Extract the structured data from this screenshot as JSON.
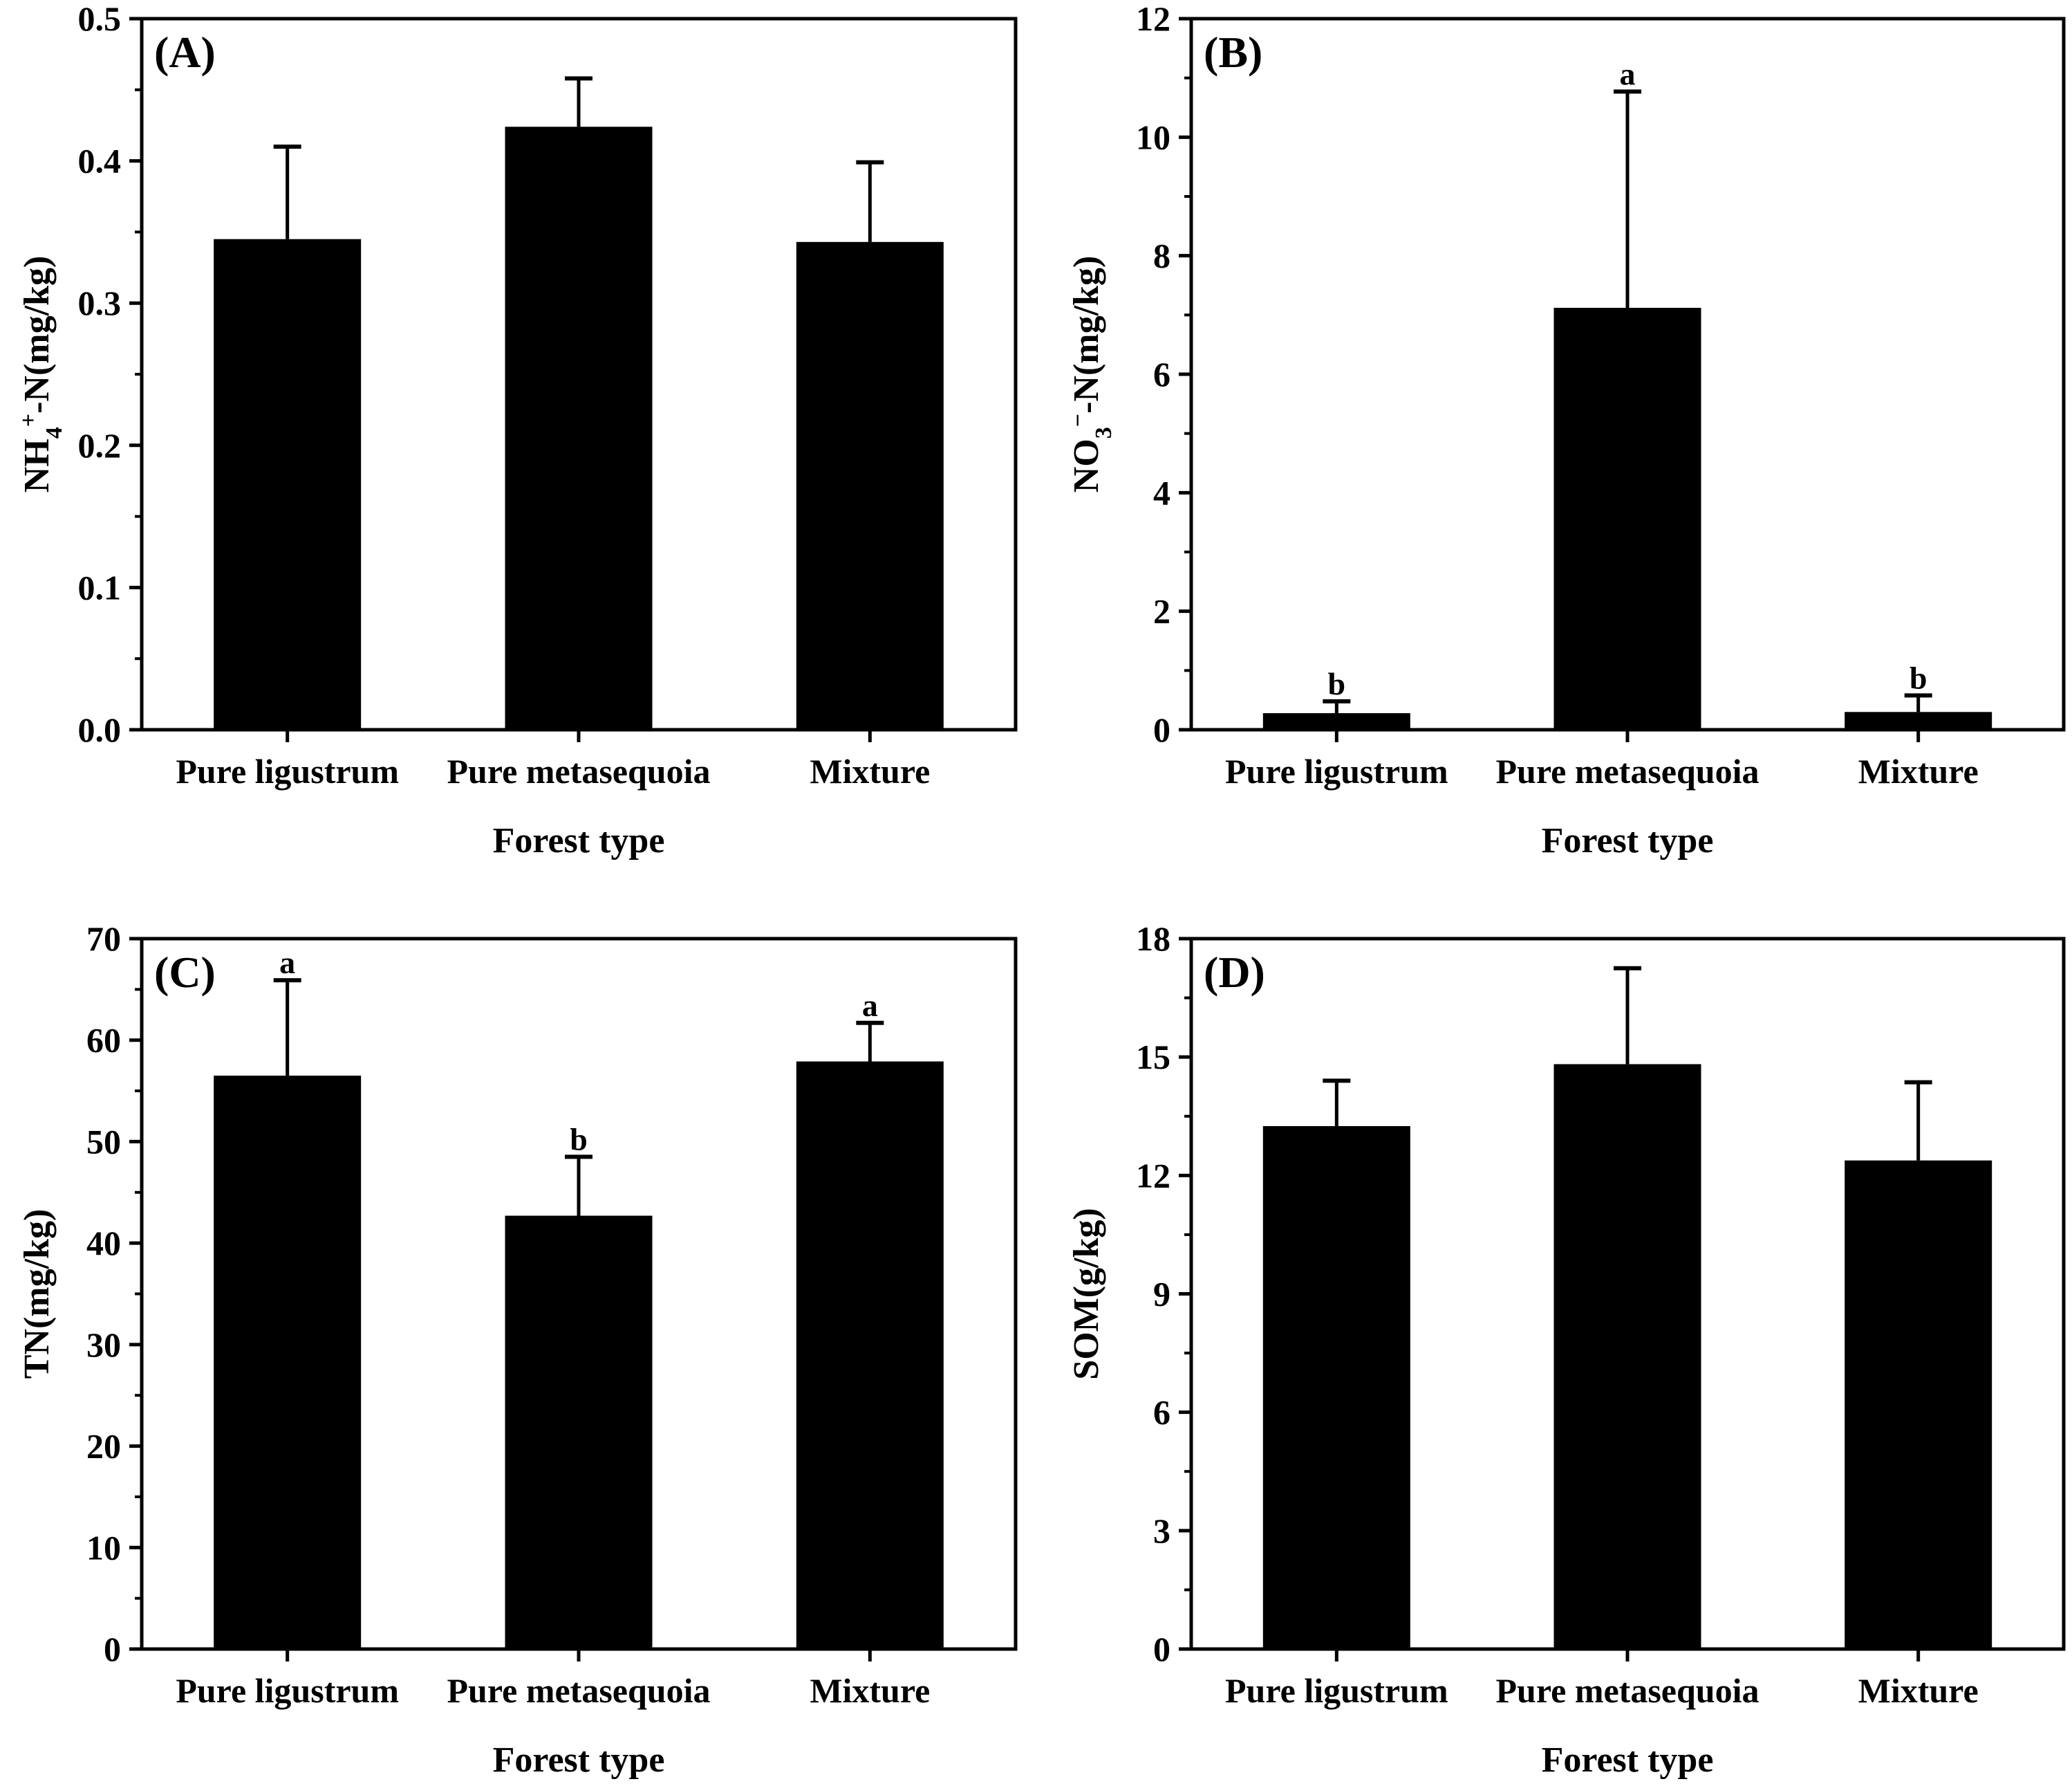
{
  "figure": {
    "colors": {
      "bar": "#000000",
      "axis": "#000000",
      "background": "#ffffff"
    }
  },
  "chart_data": [
    {
      "panel": "(A)",
      "type": "bar",
      "ylabel": "NH4+-N(mg/kg)",
      "ylabel_parts": {
        "main": "NH",
        "sub": "4",
        "sup": "+",
        "tail": "-N(mg/kg)"
      },
      "xlabel": "Forest type",
      "categories": [
        "Pure ligustrum",
        "Pure metasequoia",
        "Mixture"
      ],
      "values": [
        0.345,
        0.424,
        0.343
      ],
      "errors": [
        0.065,
        0.034,
        0.056
      ],
      "significance": [
        "",
        "",
        ""
      ],
      "ylim": [
        0,
        0.5
      ],
      "yticks": [
        0,
        0.1,
        0.2,
        0.3,
        0.4,
        0.5
      ],
      "yticklabels": [
        "0.0",
        "0.1",
        "0.2",
        "0.3",
        "0.4",
        "0.5"
      ]
    },
    {
      "panel": "(B)",
      "type": "bar",
      "ylabel": "NO3−-N(mg/kg)",
      "ylabel_parts": {
        "main": "NO",
        "sub": "3",
        "sup": "−",
        "tail": "-N(mg/kg)"
      },
      "xlabel": "Forest type",
      "categories": [
        "Pure ligustrum",
        "Pure metasequoia",
        "Mixture"
      ],
      "values": [
        0.28,
        7.12,
        0.3
      ],
      "errors": [
        0.2,
        3.65,
        0.28
      ],
      "significance": [
        "b",
        "a",
        "b"
      ],
      "ylim": [
        0,
        12
      ],
      "yticks": [
        0,
        2,
        4,
        6,
        8,
        10,
        12
      ],
      "yticklabels": [
        "0",
        "2",
        "4",
        "6",
        "8",
        "10",
        "12"
      ]
    },
    {
      "panel": "(C)",
      "type": "bar",
      "ylabel": "TN(mg/kg)",
      "xlabel": "Forest type",
      "categories": [
        "Pure ligustrum",
        "Pure metasequoia",
        "Mixture"
      ],
      "values": [
        56.5,
        42.7,
        57.9
      ],
      "errors": [
        9.4,
        5.8,
        3.8
      ],
      "significance": [
        "a",
        "b",
        "a"
      ],
      "ylim": [
        0,
        70
      ],
      "yticks": [
        0,
        10,
        20,
        30,
        40,
        50,
        60,
        70
      ],
      "yticklabels": [
        "0",
        "10",
        "20",
        "30",
        "40",
        "50",
        "60",
        "70"
      ]
    },
    {
      "panel": "(D)",
      "type": "bar",
      "ylabel": "SOM(g/kg)",
      "xlabel": "Forest type",
      "categories": [
        "Pure ligustrum",
        "Pure metasequoia",
        "Mixture"
      ],
      "values": [
        13.25,
        14.82,
        12.38
      ],
      "errors": [
        1.15,
        2.43,
        1.98
      ],
      "significance": [
        "",
        "",
        ""
      ],
      "ylim": [
        0,
        18
      ],
      "yticks": [
        0,
        3,
        6,
        9,
        12,
        15,
        18
      ],
      "yticklabels": [
        "0",
        "3",
        "6",
        "9",
        "12",
        "15",
        "18"
      ]
    }
  ]
}
